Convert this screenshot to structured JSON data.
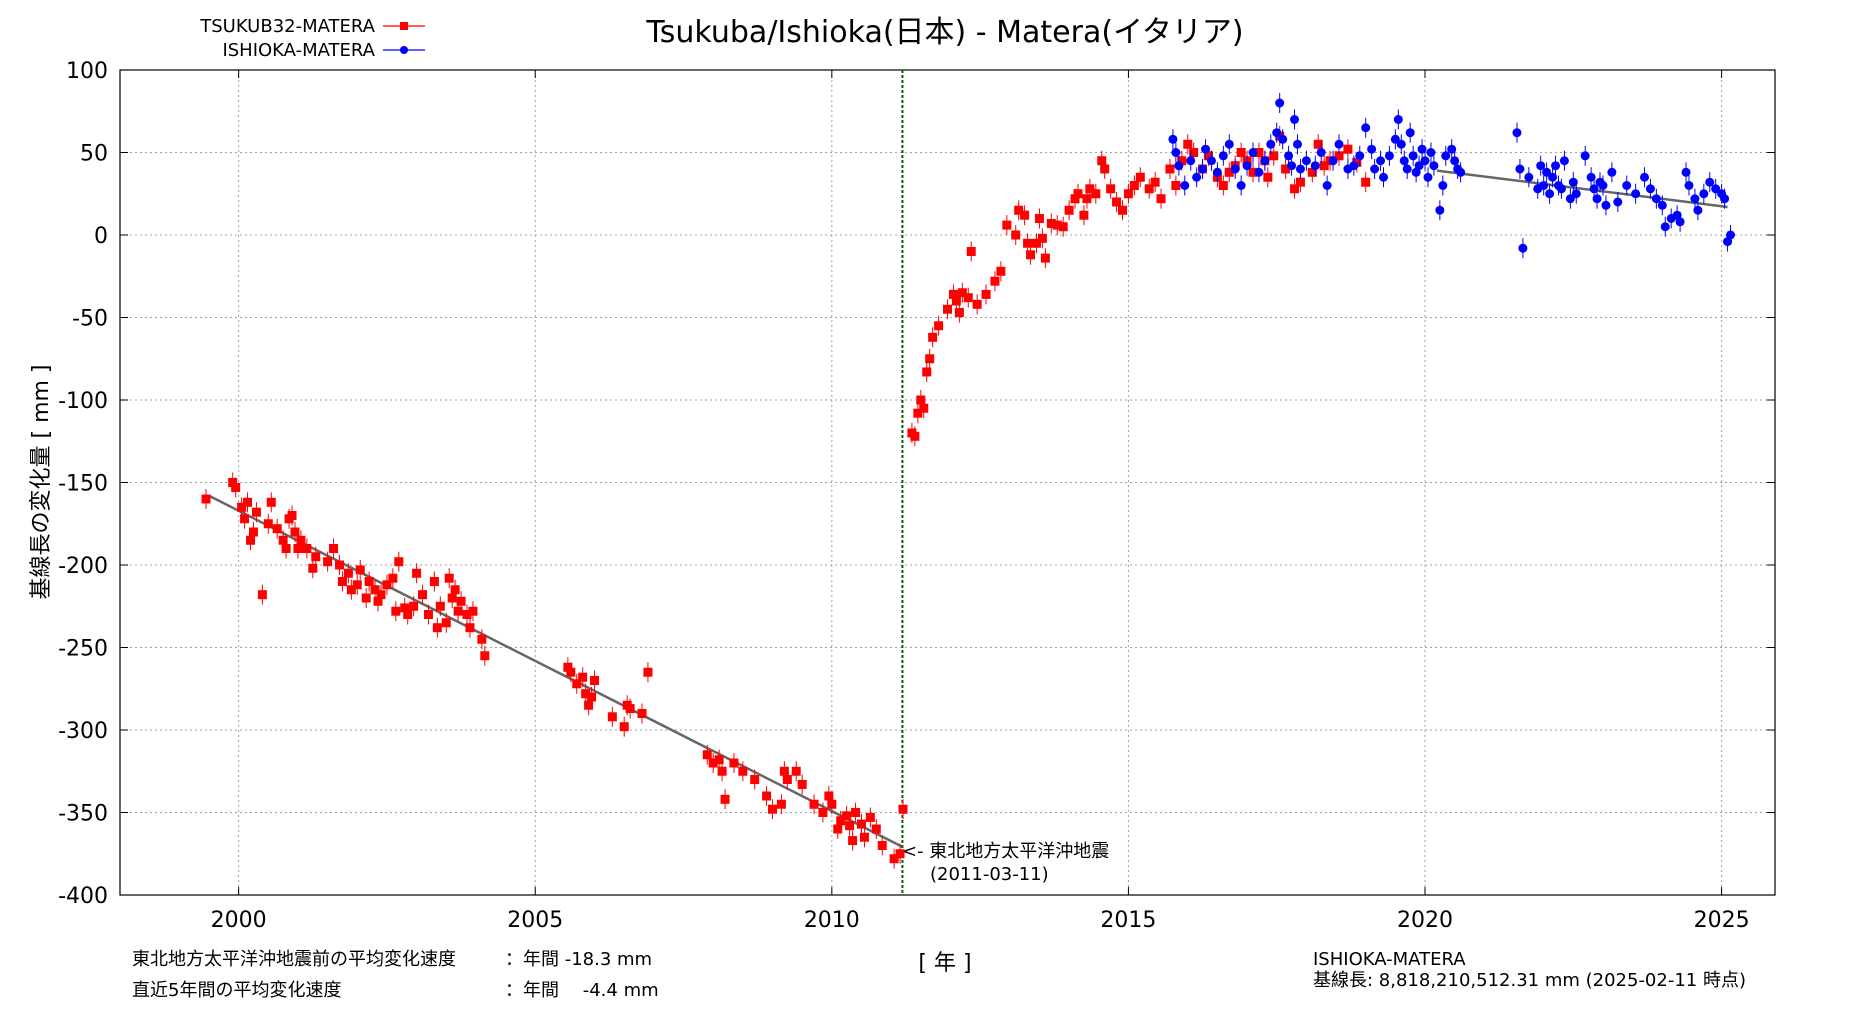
{
  "chart_data": {
    "type": "scatter",
    "title": "Tsukuba/Ishioka(日本) - Matera(イタリア)",
    "xlabel": "[ 年 ]",
    "ylabel": "基線長の変化量 [ mm ]",
    "xlim": [
      1998.0,
      2025.9
    ],
    "ylim": [
      -400,
      100
    ],
    "xticks": [
      2000,
      2005,
      2010,
      2015,
      2020,
      2025
    ],
    "yticks": [
      100,
      50,
      0,
      -50,
      -100,
      -150,
      -200,
      -250,
      -300,
      -350,
      -400
    ],
    "grid": true,
    "legend_position": "top-left",
    "series": [
      {
        "name": "TSUKUB32-MATERA",
        "color": "#ff0000",
        "marker": "square",
        "points": [
          [
            1999.45,
            -160
          ],
          [
            1999.9,
            -150
          ],
          [
            1999.95,
            -153
          ],
          [
            2000.05,
            -165
          ],
          [
            2000.1,
            -172
          ],
          [
            2000.15,
            -162
          ],
          [
            2000.2,
            -185
          ],
          [
            2000.25,
            -180
          ],
          [
            2000.3,
            -168
          ],
          [
            2000.4,
            -218
          ],
          [
            2000.5,
            -175
          ],
          [
            2000.55,
            -162
          ],
          [
            2000.65,
            -178
          ],
          [
            2000.75,
            -185
          ],
          [
            2000.8,
            -190
          ],
          [
            2000.85,
            -172
          ],
          [
            2000.9,
            -170
          ],
          [
            2000.95,
            -180
          ],
          [
            2001.0,
            -190
          ],
          [
            2001.05,
            -185
          ],
          [
            2001.15,
            -190
          ],
          [
            2001.25,
            -202
          ],
          [
            2001.3,
            -195
          ],
          [
            2001.5,
            -198
          ],
          [
            2001.6,
            -190
          ],
          [
            2001.7,
            -200
          ],
          [
            2001.75,
            -210
          ],
          [
            2001.85,
            -205
          ],
          [
            2001.9,
            -215
          ],
          [
            2002.0,
            -212
          ],
          [
            2002.05,
            -203
          ],
          [
            2002.15,
            -220
          ],
          [
            2002.2,
            -210
          ],
          [
            2002.3,
            -215
          ],
          [
            2002.35,
            -222
          ],
          [
            2002.4,
            -218
          ],
          [
            2002.5,
            -212
          ],
          [
            2002.6,
            -208
          ],
          [
            2002.65,
            -228
          ],
          [
            2002.7,
            -198
          ],
          [
            2002.8,
            -226
          ],
          [
            2002.85,
            -230
          ],
          [
            2002.95,
            -225
          ],
          [
            2003.0,
            -205
          ],
          [
            2003.1,
            -218
          ],
          [
            2003.2,
            -230
          ],
          [
            2003.3,
            -210
          ],
          [
            2003.35,
            -238
          ],
          [
            2003.4,
            -225
          ],
          [
            2003.5,
            -235
          ],
          [
            2003.55,
            -208
          ],
          [
            2003.6,
            -220
          ],
          [
            2003.65,
            -215
          ],
          [
            2003.7,
            -228
          ],
          [
            2003.75,
            -222
          ],
          [
            2003.85,
            -230
          ],
          [
            2003.9,
            -238
          ],
          [
            2003.95,
            -228
          ],
          [
            2004.1,
            -245
          ],
          [
            2004.15,
            -255
          ],
          [
            2005.55,
            -262
          ],
          [
            2005.6,
            -265
          ],
          [
            2005.7,
            -272
          ],
          [
            2005.8,
            -268
          ],
          [
            2005.85,
            -278
          ],
          [
            2005.9,
            -285
          ],
          [
            2005.95,
            -280
          ],
          [
            2006.0,
            -270
          ],
          [
            2006.3,
            -292
          ],
          [
            2006.5,
            -298
          ],
          [
            2006.55,
            -285
          ],
          [
            2006.6,
            -287
          ],
          [
            2006.8,
            -290
          ],
          [
            2006.9,
            -265
          ],
          [
            2007.9,
            -315
          ],
          [
            2008.0,
            -320
          ],
          [
            2008.1,
            -318
          ],
          [
            2008.15,
            -325
          ],
          [
            2008.2,
            -342
          ],
          [
            2008.35,
            -320
          ],
          [
            2008.5,
            -325
          ],
          [
            2008.7,
            -330
          ],
          [
            2008.9,
            -340
          ],
          [
            2009.0,
            -348
          ],
          [
            2009.15,
            -345
          ],
          [
            2009.2,
            -325
          ],
          [
            2009.25,
            -330
          ],
          [
            2009.4,
            -325
          ],
          [
            2009.5,
            -333
          ],
          [
            2009.7,
            -345
          ],
          [
            2009.85,
            -350
          ],
          [
            2009.95,
            -340
          ],
          [
            2010.0,
            -345
          ],
          [
            2010.1,
            -360
          ],
          [
            2010.15,
            -355
          ],
          [
            2010.25,
            -352
          ],
          [
            2010.3,
            -358
          ],
          [
            2010.35,
            -367
          ],
          [
            2010.4,
            -350
          ],
          [
            2010.5,
            -357
          ],
          [
            2010.55,
            -365
          ],
          [
            2010.65,
            -353
          ],
          [
            2010.75,
            -360
          ],
          [
            2010.85,
            -370
          ],
          [
            2011.05,
            -378
          ],
          [
            2011.15,
            -375
          ],
          [
            2011.2,
            -348
          ],
          [
            2011.35,
            -120
          ],
          [
            2011.4,
            -122
          ],
          [
            2011.45,
            -108
          ],
          [
            2011.5,
            -100
          ],
          [
            2011.55,
            -105
          ],
          [
            2011.6,
            -83
          ],
          [
            2011.65,
            -75
          ],
          [
            2011.7,
            -62
          ],
          [
            2011.8,
            -55
          ],
          [
            2011.95,
            -45
          ],
          [
            2012.05,
            -36
          ],
          [
            2012.1,
            -40
          ],
          [
            2012.15,
            -47
          ],
          [
            2012.2,
            -35
          ],
          [
            2012.3,
            -38
          ],
          [
            2012.35,
            -10
          ],
          [
            2012.45,
            -42
          ],
          [
            2012.6,
            -36
          ],
          [
            2012.75,
            -28
          ],
          [
            2012.85,
            -22
          ],
          [
            2012.95,
            6
          ],
          [
            2013.1,
            0
          ],
          [
            2013.15,
            15
          ],
          [
            2013.25,
            12
          ],
          [
            2013.3,
            -5
          ],
          [
            2013.35,
            -12
          ],
          [
            2013.45,
            -5
          ],
          [
            2013.5,
            10
          ],
          [
            2013.55,
            -2
          ],
          [
            2013.6,
            -14
          ],
          [
            2013.7,
            7
          ],
          [
            2013.8,
            6
          ],
          [
            2013.9,
            5
          ],
          [
            2014.0,
            15
          ],
          [
            2014.1,
            22
          ],
          [
            2014.15,
            25
          ],
          [
            2014.25,
            12
          ],
          [
            2014.3,
            22
          ],
          [
            2014.35,
            28
          ],
          [
            2014.45,
            25
          ],
          [
            2014.55,
            45
          ],
          [
            2014.6,
            40
          ],
          [
            2014.7,
            28
          ],
          [
            2014.8,
            20
          ],
          [
            2014.9,
            15
          ],
          [
            2015.0,
            25
          ],
          [
            2015.1,
            30
          ],
          [
            2015.2,
            35
          ],
          [
            2015.35,
            28
          ],
          [
            2015.45,
            32
          ],
          [
            2015.55,
            22
          ],
          [
            2015.7,
            40
          ],
          [
            2015.8,
            30
          ],
          [
            2015.9,
            45
          ],
          [
            2016.0,
            55
          ],
          [
            2016.1,
            50
          ],
          [
            2016.25,
            40
          ],
          [
            2016.35,
            48
          ],
          [
            2016.5,
            35
          ],
          [
            2016.6,
            30
          ],
          [
            2016.7,
            38
          ],
          [
            2016.8,
            42
          ],
          [
            2016.9,
            50
          ],
          [
            2017.0,
            45
          ],
          [
            2017.1,
            38
          ],
          [
            2017.2,
            50
          ],
          [
            2017.3,
            45
          ],
          [
            2017.35,
            35
          ],
          [
            2017.45,
            48
          ],
          [
            2017.55,
            60
          ],
          [
            2017.65,
            40
          ],
          [
            2017.8,
            28
          ],
          [
            2017.9,
            32
          ],
          [
            2018.1,
            38
          ],
          [
            2018.2,
            55
          ],
          [
            2018.3,
            42
          ],
          [
            2018.4,
            45
          ],
          [
            2018.55,
            48
          ],
          [
            2018.7,
            52
          ],
          [
            2018.85,
            44
          ],
          [
            2019.0,
            32
          ]
        ]
      },
      {
        "name": "ISHIOKA-MATERA",
        "color": "#0000ff",
        "marker": "circle",
        "points": [
          [
            2015.75,
            58
          ],
          [
            2015.8,
            50
          ],
          [
            2015.85,
            42
          ],
          [
            2015.95,
            30
          ],
          [
            2016.05,
            45
          ],
          [
            2016.15,
            35
          ],
          [
            2016.25,
            40
          ],
          [
            2016.3,
            52
          ],
          [
            2016.4,
            45
          ],
          [
            2016.5,
            38
          ],
          [
            2016.6,
            48
          ],
          [
            2016.7,
            55
          ],
          [
            2016.8,
            40
          ],
          [
            2016.9,
            30
          ],
          [
            2017.0,
            42
          ],
          [
            2017.1,
            50
          ],
          [
            2017.2,
            38
          ],
          [
            2017.3,
            45
          ],
          [
            2017.4,
            55
          ],
          [
            2017.5,
            62
          ],
          [
            2017.55,
            80
          ],
          [
            2017.6,
            58
          ],
          [
            2017.7,
            48
          ],
          [
            2017.75,
            42
          ],
          [
            2017.8,
            70
          ],
          [
            2017.85,
            55
          ],
          [
            2017.9,
            40
          ],
          [
            2018.0,
            45
          ],
          [
            2018.15,
            42
          ],
          [
            2018.25,
            50
          ],
          [
            2018.35,
            30
          ],
          [
            2018.45,
            45
          ],
          [
            2018.55,
            55
          ],
          [
            2018.7,
            40
          ],
          [
            2018.8,
            42
          ],
          [
            2018.9,
            48
          ],
          [
            2019.0,
            65
          ],
          [
            2019.1,
            52
          ],
          [
            2019.15,
            40
          ],
          [
            2019.25,
            45
          ],
          [
            2019.3,
            35
          ],
          [
            2019.4,
            48
          ],
          [
            2019.5,
            58
          ],
          [
            2019.55,
            70
          ],
          [
            2019.6,
            55
          ],
          [
            2019.65,
            45
          ],
          [
            2019.7,
            40
          ],
          [
            2019.75,
            62
          ],
          [
            2019.8,
            48
          ],
          [
            2019.85,
            38
          ],
          [
            2019.9,
            42
          ],
          [
            2019.95,
            52
          ],
          [
            2020.0,
            45
          ],
          [
            2020.05,
            35
          ],
          [
            2020.1,
            50
          ],
          [
            2020.15,
            42
          ],
          [
            2020.25,
            15
          ],
          [
            2020.3,
            30
          ],
          [
            2020.35,
            48
          ],
          [
            2020.45,
            52
          ],
          [
            2020.5,
            45
          ],
          [
            2020.55,
            40
          ],
          [
            2020.6,
            38
          ],
          [
            2021.55,
            62
          ],
          [
            2021.6,
            40
          ],
          [
            2021.65,
            -8
          ],
          [
            2021.75,
            35
          ],
          [
            2021.9,
            28
          ],
          [
            2021.95,
            42
          ],
          [
            2022.0,
            30
          ],
          [
            2022.05,
            38
          ],
          [
            2022.1,
            25
          ],
          [
            2022.15,
            35
          ],
          [
            2022.2,
            42
          ],
          [
            2022.25,
            30
          ],
          [
            2022.3,
            28
          ],
          [
            2022.35,
            45
          ],
          [
            2022.45,
            22
          ],
          [
            2022.5,
            32
          ],
          [
            2022.55,
            25
          ],
          [
            2022.7,
            48
          ],
          [
            2022.8,
            35
          ],
          [
            2022.85,
            28
          ],
          [
            2022.9,
            22
          ],
          [
            2022.95,
            32
          ],
          [
            2023.0,
            30
          ],
          [
            2023.05,
            18
          ],
          [
            2023.15,
            38
          ],
          [
            2023.25,
            20
          ],
          [
            2023.4,
            30
          ],
          [
            2023.55,
            25
          ],
          [
            2023.7,
            35
          ],
          [
            2023.8,
            28
          ],
          [
            2023.9,
            22
          ],
          [
            2024.0,
            18
          ],
          [
            2024.05,
            5
          ],
          [
            2024.15,
            10
          ],
          [
            2024.25,
            12
          ],
          [
            2024.3,
            8
          ],
          [
            2024.4,
            38
          ],
          [
            2024.45,
            30
          ],
          [
            2024.55,
            22
          ],
          [
            2024.6,
            15
          ],
          [
            2024.7,
            25
          ],
          [
            2024.8,
            32
          ],
          [
            2024.9,
            28
          ],
          [
            2025.0,
            25
          ],
          [
            2025.05,
            22
          ],
          [
            2025.1,
            -4
          ],
          [
            2025.15,
            0
          ]
        ]
      }
    ],
    "trend_lines": [
      {
        "x": [
          1999.5,
          2011.2
        ],
        "y": [
          -158,
          -371
        ],
        "color": "#666666"
      },
      {
        "x": [
          2020.2,
          2025.1
        ],
        "y": [
          39,
          17
        ],
        "color": "#666666"
      }
    ],
    "event_line": {
      "x": 2011.19,
      "color": "#006400"
    },
    "annotation": {
      "line1": "<- 東北地方太平洋沖地震",
      "line2": "(2011-03-11)"
    }
  },
  "footer": {
    "rate_before_label": "東北地方太平洋沖地震前の平均変化速度",
    "rate_before_value": "：年間 -18.3 mm",
    "rate_recent_label": "直近5年間の平均変化速度",
    "rate_recent_value": "：年間 　-4.4 mm",
    "baseline_name": "ISHIOKA-MATERA",
    "baseline_length": "基線長: 8,818,210,512.31 mm (2025-02-11 時点)"
  }
}
